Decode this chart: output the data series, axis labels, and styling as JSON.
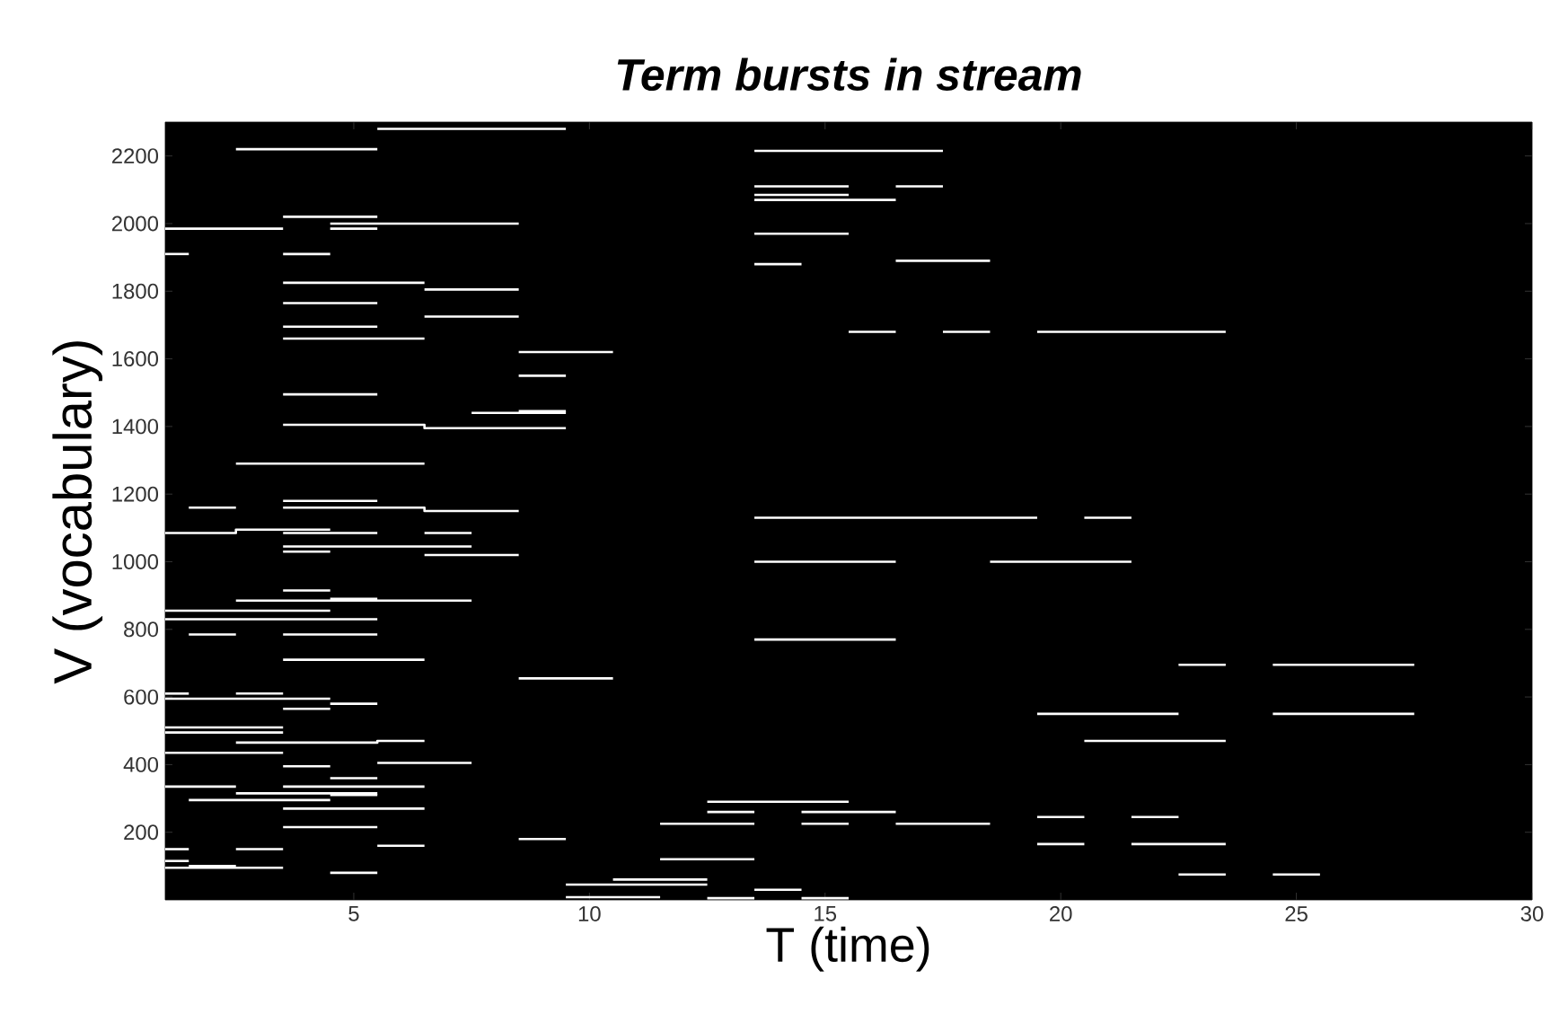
{
  "chart_data": {
    "type": "line",
    "title": "Term bursts in stream",
    "xlabel": "T (time)",
    "ylabel": "V (vocabulary)",
    "xlim": [
      1,
      30
    ],
    "ylim": [
      0,
      2300
    ],
    "xticks": [
      5,
      10,
      15,
      20,
      25,
      30
    ],
    "yticks": [
      200,
      400,
      600,
      800,
      1000,
      1200,
      1400,
      1600,
      1800,
      2000,
      2200
    ],
    "grid": false,
    "series": [
      {
        "color": "#ffffff",
        "x": [
          5.5,
          9.5
        ],
        "values": [
          2280,
          2280
        ]
      },
      {
        "color": "#ffffff",
        "x": [
          2.5,
          5.5
        ],
        "values": [
          2220,
          2220
        ]
      },
      {
        "color": "#ffffff",
        "x": [
          13.5,
          17.5
        ],
        "values": [
          2215,
          2215
        ]
      },
      {
        "color": "#ffffff",
        "x": [
          13.5,
          15.5
        ],
        "values": [
          2110,
          2110
        ]
      },
      {
        "color": "#ffffff",
        "x": [
          16.5,
          17.5
        ],
        "values": [
          2110,
          2110
        ]
      },
      {
        "color": "#ffffff",
        "x": [
          13.5,
          15.5
        ],
        "values": [
          2085,
          2085
        ]
      },
      {
        "color": "#ffffff",
        "x": [
          13.5,
          16.5
        ],
        "values": [
          2070,
          2070
        ]
      },
      {
        "color": "#ffffff",
        "x": [
          3.5,
          5.5
        ],
        "values": [
          2020,
          2020
        ]
      },
      {
        "color": "#ffffff",
        "x": [
          4.5,
          8.5
        ],
        "values": [
          2000,
          2000
        ]
      },
      {
        "color": "#ffffff",
        "x": [
          1,
          3.5
        ],
        "values": [
          1985,
          1985
        ]
      },
      {
        "color": "#ffffff",
        "x": [
          4.5,
          5.5
        ],
        "values": [
          1985,
          1985
        ]
      },
      {
        "color": "#ffffff",
        "x": [
          13.5,
          15.5
        ],
        "values": [
          1970,
          1970
        ]
      },
      {
        "color": "#ffffff",
        "x": [
          1,
          1.5
        ],
        "values": [
          1910,
          1910
        ]
      },
      {
        "color": "#ffffff",
        "x": [
          3.5,
          4.5
        ],
        "values": [
          1910,
          1910
        ]
      },
      {
        "color": "#ffffff",
        "x": [
          16.5,
          18.5
        ],
        "values": [
          1890,
          1890
        ]
      },
      {
        "color": "#ffffff",
        "x": [
          13.5,
          14.5
        ],
        "values": [
          1880,
          1880
        ]
      },
      {
        "color": "#ffffff",
        "x": [
          3.5,
          6.5
        ],
        "values": [
          1825,
          1825
        ]
      },
      {
        "color": "#ffffff",
        "x": [
          6.5,
          8.5
        ],
        "values": [
          1805,
          1805
        ]
      },
      {
        "color": "#ffffff",
        "x": [
          3.5,
          5.5
        ],
        "values": [
          1765,
          1765
        ]
      },
      {
        "color": "#ffffff",
        "x": [
          6.5,
          8.5
        ],
        "values": [
          1725,
          1725
        ]
      },
      {
        "color": "#ffffff",
        "x": [
          3.5,
          5.5
        ],
        "values": [
          1695,
          1695
        ]
      },
      {
        "color": "#ffffff",
        "x": [
          15.5,
          16.5
        ],
        "values": [
          1680,
          1680
        ]
      },
      {
        "color": "#ffffff",
        "x": [
          17.5,
          18.5
        ],
        "values": [
          1680,
          1680
        ]
      },
      {
        "color": "#ffffff",
        "x": [
          19.5,
          23.5
        ],
        "values": [
          1680,
          1680
        ]
      },
      {
        "color": "#ffffff",
        "x": [
          3.5,
          6.5
        ],
        "values": [
          1660,
          1660
        ]
      },
      {
        "color": "#ffffff",
        "x": [
          8.5,
          10.5
        ],
        "values": [
          1620,
          1620
        ]
      },
      {
        "color": "#ffffff",
        "x": [
          8.5,
          9.5
        ],
        "values": [
          1550,
          1550
        ]
      },
      {
        "color": "#ffffff",
        "x": [
          3.5,
          5.5
        ],
        "values": [
          1495,
          1495
        ]
      },
      {
        "color": "#ffffff",
        "x": [
          7.5,
          9.5
        ],
        "values": [
          1440,
          1440
        ]
      },
      {
        "color": "#ffffff",
        "x": [
          8.5,
          9.5
        ],
        "values": [
          1445,
          1445
        ]
      },
      {
        "color": "#ffffff",
        "x": [
          3.5,
          6.5,
          6.5,
          9.5
        ],
        "values": [
          1405,
          1405,
          1395,
          1395
        ]
      },
      {
        "color": "#ffffff",
        "x": [
          2.5,
          6.5
        ],
        "values": [
          1290,
          1290
        ]
      },
      {
        "color": "#ffffff",
        "x": [
          3.5,
          5.5
        ],
        "values": [
          1180,
          1180
        ]
      },
      {
        "color": "#ffffff",
        "x": [
          1.5,
          2.5
        ],
        "values": [
          1160,
          1160
        ]
      },
      {
        "color": "#ffffff",
        "x": [
          3.5,
          6.5,
          6.5,
          8.5
        ],
        "values": [
          1160,
          1160,
          1150,
          1150
        ]
      },
      {
        "color": "#ffffff",
        "x": [
          13.5,
          19.5
        ],
        "values": [
          1130,
          1130
        ]
      },
      {
        "color": "#ffffff",
        "x": [
          20.5,
          21.5
        ],
        "values": [
          1130,
          1130
        ]
      },
      {
        "color": "#ffffff",
        "x": [
          1,
          2.5,
          2.5,
          4.5
        ],
        "values": [
          1085,
          1085,
          1095,
          1095
        ]
      },
      {
        "color": "#ffffff",
        "x": [
          3.5,
          5.5
        ],
        "values": [
          1085,
          1085
        ]
      },
      {
        "color": "#ffffff",
        "x": [
          6.5,
          7.5
        ],
        "values": [
          1085,
          1085
        ]
      },
      {
        "color": "#ffffff",
        "x": [
          3.5,
          7.5
        ],
        "values": [
          1045,
          1045
        ]
      },
      {
        "color": "#ffffff",
        "x": [
          3.5,
          4.5
        ],
        "values": [
          1030,
          1030
        ]
      },
      {
        "color": "#ffffff",
        "x": [
          6.5,
          8.5
        ],
        "values": [
          1020,
          1020
        ]
      },
      {
        "color": "#ffffff",
        "x": [
          13.5,
          16.5
        ],
        "values": [
          1000,
          1000
        ]
      },
      {
        "color": "#ffffff",
        "x": [
          18.5,
          21.5
        ],
        "values": [
          1000,
          1000
        ]
      },
      {
        "color": "#ffffff",
        "x": [
          3.5,
          4.5
        ],
        "values": [
          915,
          915
        ]
      },
      {
        "color": "#ffffff",
        "x": [
          4.5,
          5.5
        ],
        "values": [
          890,
          890
        ]
      },
      {
        "color": "#ffffff",
        "x": [
          2.5,
          7.5
        ],
        "values": [
          885,
          885
        ]
      },
      {
        "color": "#ffffff",
        "x": [
          1,
          4.5
        ],
        "values": [
          855,
          855
        ]
      },
      {
        "color": "#ffffff",
        "x": [
          1,
          5.5
        ],
        "values": [
          830,
          830
        ]
      },
      {
        "color": "#ffffff",
        "x": [
          1.5,
          2.5
        ],
        "values": [
          785,
          785
        ]
      },
      {
        "color": "#ffffff",
        "x": [
          3.5,
          5.5
        ],
        "values": [
          785,
          785
        ]
      },
      {
        "color": "#ffffff",
        "x": [
          13.5,
          16.5
        ],
        "values": [
          770,
          770
        ]
      },
      {
        "color": "#ffffff",
        "x": [
          3.5,
          6.5
        ],
        "values": [
          710,
          710
        ]
      },
      {
        "color": "#ffffff",
        "x": [
          22.5,
          23.5
        ],
        "values": [
          695,
          695
        ]
      },
      {
        "color": "#ffffff",
        "x": [
          24.5,
          27.5
        ],
        "values": [
          695,
          695
        ]
      },
      {
        "color": "#ffffff",
        "x": [
          8.5,
          10.5
        ],
        "values": [
          655,
          655
        ]
      },
      {
        "color": "#ffffff",
        "x": [
          1,
          1.5
        ],
        "values": [
          610,
          610
        ]
      },
      {
        "color": "#ffffff",
        "x": [
          2.5,
          3.5
        ],
        "values": [
          610,
          610
        ]
      },
      {
        "color": "#ffffff",
        "x": [
          1,
          4.5
        ],
        "values": [
          595,
          595
        ]
      },
      {
        "color": "#ffffff",
        "x": [
          4.5,
          5.5
        ],
        "values": [
          580,
          580
        ]
      },
      {
        "color": "#ffffff",
        "x": [
          3.5,
          4.5
        ],
        "values": [
          565,
          565
        ]
      },
      {
        "color": "#ffffff",
        "x": [
          19.5,
          22.5
        ],
        "values": [
          550,
          550
        ]
      },
      {
        "color": "#ffffff",
        "x": [
          24.5,
          27.5
        ],
        "values": [
          550,
          550
        ]
      },
      {
        "color": "#ffffff",
        "x": [
          1,
          3.5
        ],
        "values": [
          510,
          510
        ]
      },
      {
        "color": "#ffffff",
        "x": [
          1,
          3.5
        ],
        "values": [
          495,
          495
        ]
      },
      {
        "color": "#ffffff",
        "x": [
          20.5,
          23.5
        ],
        "values": [
          470,
          470
        ]
      },
      {
        "color": "#ffffff",
        "x": [
          2.5,
          5.5,
          5.5,
          6.5
        ],
        "values": [
          465,
          465,
          470,
          470
        ]
      },
      {
        "color": "#ffffff",
        "x": [
          1,
          3.5
        ],
        "values": [
          435,
          435
        ]
      },
      {
        "color": "#ffffff",
        "x": [
          5.5,
          7.5
        ],
        "values": [
          405,
          405
        ]
      },
      {
        "color": "#ffffff",
        "x": [
          3.5,
          4.5
        ],
        "values": [
          395,
          395
        ]
      },
      {
        "color": "#ffffff",
        "x": [
          4.5,
          5.5
        ],
        "values": [
          360,
          360
        ]
      },
      {
        "color": "#ffffff",
        "x": [
          1,
          2.5
        ],
        "values": [
          335,
          335
        ]
      },
      {
        "color": "#ffffff",
        "x": [
          3.5,
          6.5
        ],
        "values": [
          335,
          335
        ]
      },
      {
        "color": "#ffffff",
        "x": [
          2.5,
          5.5
        ],
        "values": [
          315,
          315
        ]
      },
      {
        "color": "#ffffff",
        "x": [
          4.5,
          5.5
        ],
        "values": [
          310,
          310
        ]
      },
      {
        "color": "#ffffff",
        "x": [
          1.5,
          4.5
        ],
        "values": [
          295,
          295
        ]
      },
      {
        "color": "#ffffff",
        "x": [
          12.5,
          15.5
        ],
        "values": [
          290,
          290
        ]
      },
      {
        "color": "#ffffff",
        "x": [
          3.5,
          6.5
        ],
        "values": [
          270,
          270
        ]
      },
      {
        "color": "#ffffff",
        "x": [
          12.5,
          13.5
        ],
        "values": [
          260,
          260
        ]
      },
      {
        "color": "#ffffff",
        "x": [
          14.5,
          16.5
        ],
        "values": [
          260,
          260
        ]
      },
      {
        "color": "#ffffff",
        "x": [
          19.5,
          20.5
        ],
        "values": [
          245,
          245
        ]
      },
      {
        "color": "#ffffff",
        "x": [
          21.5,
          22.5
        ],
        "values": [
          245,
          245
        ]
      },
      {
        "color": "#ffffff",
        "x": [
          11.5,
          13.5
        ],
        "values": [
          225,
          225
        ]
      },
      {
        "color": "#ffffff",
        "x": [
          14.5,
          15.5
        ],
        "values": [
          225,
          225
        ]
      },
      {
        "color": "#ffffff",
        "x": [
          16.5,
          18.5
        ],
        "values": [
          225,
          225
        ]
      },
      {
        "color": "#ffffff",
        "x": [
          3.5,
          5.5
        ],
        "values": [
          215,
          215
        ]
      },
      {
        "color": "#ffffff",
        "x": [
          8.5,
          9.5
        ],
        "values": [
          180,
          180
        ]
      },
      {
        "color": "#ffffff",
        "x": [
          19.5,
          20.5
        ],
        "values": [
          165,
          165
        ]
      },
      {
        "color": "#ffffff",
        "x": [
          21.5,
          23.5
        ],
        "values": [
          165,
          165
        ]
      },
      {
        "color": "#ffffff",
        "x": [
          5.5,
          6.5
        ],
        "values": [
          160,
          160
        ]
      },
      {
        "color": "#ffffff",
        "x": [
          1,
          1.5
        ],
        "values": [
          150,
          150
        ]
      },
      {
        "color": "#ffffff",
        "x": [
          2.5,
          3.5
        ],
        "values": [
          150,
          150
        ]
      },
      {
        "color": "#ffffff",
        "x": [
          11.5,
          13.5
        ],
        "values": [
          120,
          120
        ]
      },
      {
        "color": "#ffffff",
        "x": [
          1,
          1.5
        ],
        "values": [
          115,
          115
        ]
      },
      {
        "color": "#ffffff",
        "x": [
          1,
          3.5
        ],
        "values": [
          95,
          95
        ]
      },
      {
        "color": "#ffffff",
        "x": [
          1.5,
          2.5
        ],
        "values": [
          100,
          100
        ]
      },
      {
        "color": "#ffffff",
        "x": [
          4.5,
          5.5
        ],
        "values": [
          80,
          80
        ]
      },
      {
        "color": "#ffffff",
        "x": [
          22.5,
          23.5
        ],
        "values": [
          75,
          75
        ]
      },
      {
        "color": "#ffffff",
        "x": [
          24.5,
          25.5
        ],
        "values": [
          75,
          75
        ]
      },
      {
        "color": "#ffffff",
        "x": [
          10.5,
          12.5
        ],
        "values": [
          60,
          60
        ]
      },
      {
        "color": "#ffffff",
        "x": [
          9.5,
          12.5
        ],
        "values": [
          45,
          45
        ]
      },
      {
        "color": "#ffffff",
        "x": [
          13.5,
          14.5
        ],
        "values": [
          30,
          30
        ]
      },
      {
        "color": "#ffffff",
        "x": [
          9.5,
          11.5
        ],
        "values": [
          8,
          8
        ]
      },
      {
        "color": "#ffffff",
        "x": [
          12.5,
          13.5
        ],
        "values": [
          5,
          5
        ]
      },
      {
        "color": "#ffffff",
        "x": [
          14.5,
          15.5
        ],
        "values": [
          5,
          5
        ]
      }
    ]
  }
}
